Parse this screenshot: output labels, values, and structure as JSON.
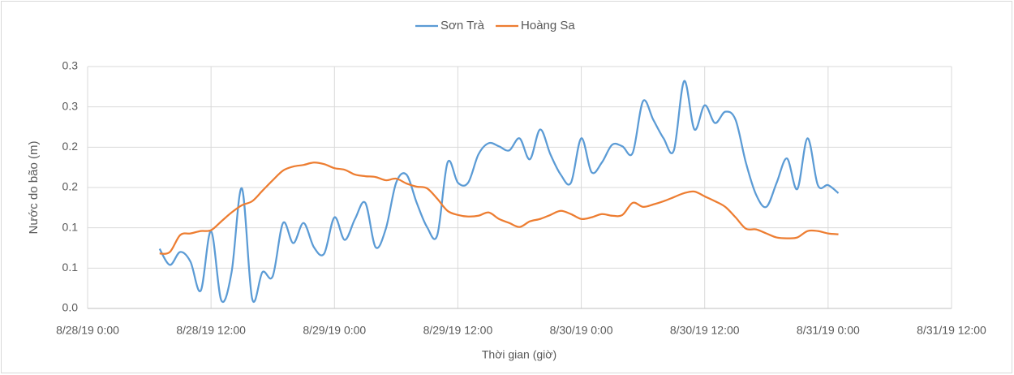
{
  "chart_data": {
    "type": "line",
    "xlabel": "Thời gian (giờ)",
    "ylabel": "Nước do bão (m)",
    "x": [
      7,
      8,
      9,
      10,
      11,
      12,
      13,
      14,
      15,
      16,
      17,
      18,
      19,
      20,
      21,
      22,
      23,
      24,
      25,
      26,
      27,
      28,
      29,
      30,
      31,
      32,
      33,
      34,
      35,
      36,
      37,
      38,
      39,
      40,
      41,
      42,
      43,
      44,
      45,
      46,
      47,
      48,
      49,
      50,
      51,
      52,
      53,
      54,
      55,
      56,
      57,
      58,
      59,
      60,
      61,
      62,
      63,
      64,
      65,
      66,
      67,
      68,
      69,
      70,
      71,
      72,
      73
    ],
    "series": [
      {
        "name": "Sơn Trà",
        "color": "#5b9bd5",
        "values": [
          0.074,
          0.054,
          0.07,
          0.058,
          0.022,
          0.096,
          0.01,
          0.045,
          0.149,
          0.012,
          0.045,
          0.04,
          0.106,
          0.081,
          0.106,
          0.076,
          0.068,
          0.113,
          0.085,
          0.111,
          0.131,
          0.076,
          0.099,
          0.156,
          0.166,
          0.131,
          0.101,
          0.091,
          0.181,
          0.156,
          0.156,
          0.191,
          0.205,
          0.201,
          0.196,
          0.211,
          0.185,
          0.222,
          0.191,
          0.166,
          0.156,
          0.211,
          0.169,
          0.181,
          0.203,
          0.201,
          0.193,
          0.257,
          0.234,
          0.211,
          0.196,
          0.282,
          0.222,
          0.252,
          0.23,
          0.244,
          0.234,
          0.181,
          0.141,
          0.126,
          0.156,
          0.186,
          0.148,
          0.211,
          0.153,
          0.153,
          0.143
        ]
      },
      {
        "name": "Hoàng Sa",
        "color": "#ed7d31",
        "values": [
          0.068,
          0.07,
          0.091,
          0.093,
          0.096,
          0.097,
          0.108,
          0.119,
          0.128,
          0.133,
          0.146,
          0.159,
          0.171,
          0.176,
          0.178,
          0.181,
          0.179,
          0.174,
          0.172,
          0.166,
          0.164,
          0.163,
          0.159,
          0.161,
          0.155,
          0.151,
          0.149,
          0.136,
          0.121,
          0.116,
          0.114,
          0.115,
          0.119,
          0.111,
          0.106,
          0.101,
          0.108,
          0.111,
          0.116,
          0.121,
          0.117,
          0.111,
          0.113,
          0.117,
          0.115,
          0.116,
          0.131,
          0.126,
          0.129,
          0.133,
          0.138,
          0.143,
          0.145,
          0.139,
          0.133,
          0.126,
          0.113,
          0.099,
          0.098,
          0.093,
          0.088,
          0.087,
          0.088,
          0.096,
          0.096,
          0.093,
          0.092
        ]
      }
    ],
    "xlim": [
      0,
      84
    ],
    "xticks": [
      {
        "value": 0,
        "label": "8/28/19 0:00"
      },
      {
        "value": 12,
        "label": "8/28/19 12:00"
      },
      {
        "value": 24,
        "label": "8/29/19 0:00"
      },
      {
        "value": 36,
        "label": "8/29/19 12:00"
      },
      {
        "value": 48,
        "label": "8/30/19 0:00"
      },
      {
        "value": 60,
        "label": "8/30/19 12:00"
      },
      {
        "value": 72,
        "label": "8/31/19 0:00"
      },
      {
        "value": 84,
        "label": "8/31/19 12:00"
      }
    ],
    "ylim": [
      0,
      0.3
    ],
    "yticks": [
      {
        "value": 0,
        "label": "0.0"
      },
      {
        "value": 0.05,
        "label": "0.1"
      },
      0.1,
      {
        "value": 0.15,
        "label": "0.2"
      },
      0.2,
      {
        "value": 0.25,
        "label": "0.3"
      },
      0.3
    ],
    "grid": true,
    "legend": "top"
  }
}
